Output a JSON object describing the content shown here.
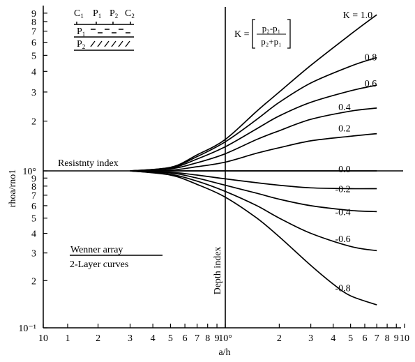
{
  "chart_data": {
    "type": "line",
    "xlabel": "a/h",
    "ylabel": "rhoa/rno1",
    "x_scale": "log",
    "y_scale": "log",
    "xlim": [
      0.1,
      10
    ],
    "ylim": [
      0.1,
      10
    ],
    "x_tick_labels": [
      "10",
      "1",
      "2",
      "3",
      "4",
      "5",
      "6",
      "7",
      "8",
      "9",
      "10°",
      "2",
      "3",
      "4",
      "5",
      "6",
      "7",
      "8",
      "9",
      "10"
    ],
    "y_tick_labels": [
      "10⁻¹",
      "2",
      "3",
      "4",
      "5",
      "6",
      "7",
      "8",
      "9",
      "10°",
      "2",
      "3",
      "4",
      "5",
      "6",
      "7",
      "8",
      "9"
    ],
    "formula": {
      "lhs": "K =",
      "numerator": "p₂-p₁",
      "denominator": "p₂+p₁"
    },
    "annotations": {
      "resistivity_index": "Resistnty index",
      "depth_index": "Depth index",
      "legend_line1": "Wenner  array",
      "legend_line2": "2-Layer curves",
      "inset_top": [
        "C",
        "P",
        "P",
        "C"
      ],
      "inset_top_sub": [
        "1",
        "1",
        "2",
        "2"
      ],
      "inset_layer1": "P",
      "inset_layer1_sub": "1",
      "inset_layer2": "P",
      "inset_layer2_sub": "2"
    },
    "series": [
      {
        "name": "K = 1.0",
        "x": [
          0.3,
          0.5,
          0.7,
          1,
          1.5,
          2,
          3,
          5,
          7
        ],
        "y": [
          1,
          1.05,
          1.25,
          1.55,
          2.3,
          3.0,
          4.35,
          6.7,
          8.8
        ]
      },
      {
        "name": "0.8",
        "x": [
          0.3,
          0.5,
          0.7,
          1,
          1.5,
          2,
          3,
          5,
          7
        ],
        "y": [
          1,
          1.05,
          1.22,
          1.5,
          2.05,
          2.6,
          3.4,
          4.3,
          4.85
        ]
      },
      {
        "name": "0.6",
        "x": [
          0.3,
          0.5,
          0.7,
          1,
          1.5,
          2,
          3,
          5,
          7
        ],
        "y": [
          1,
          1.04,
          1.18,
          1.4,
          1.8,
          2.15,
          2.6,
          3.05,
          3.3
        ]
      },
      {
        "name": "0.4",
        "x": [
          0.3,
          0.5,
          0.7,
          1,
          1.5,
          2,
          3,
          5,
          7
        ],
        "y": [
          1,
          1.03,
          1.12,
          1.27,
          1.55,
          1.75,
          2.05,
          2.3,
          2.4
        ]
      },
      {
        "name": "0.2",
        "x": [
          0.3,
          0.5,
          0.7,
          1,
          1.5,
          2,
          3,
          5,
          7
        ],
        "y": [
          1,
          1.01,
          1.06,
          1.13,
          1.28,
          1.38,
          1.52,
          1.62,
          1.68
        ]
      },
      {
        "name": "0.0",
        "x": [
          0.3,
          7
        ],
        "y": [
          1,
          1
        ]
      },
      {
        "name": "-0.2",
        "x": [
          0.3,
          0.5,
          0.7,
          1,
          1.5,
          2,
          3,
          5,
          7
        ],
        "y": [
          1,
          0.98,
          0.94,
          0.89,
          0.84,
          0.81,
          0.78,
          0.77,
          0.77
        ]
      },
      {
        "name": "-0.4",
        "x": [
          0.3,
          0.5,
          0.7,
          1,
          1.5,
          2,
          3,
          5,
          7
        ],
        "y": [
          1,
          0.97,
          0.9,
          0.81,
          0.72,
          0.66,
          0.6,
          0.56,
          0.55
        ]
      },
      {
        "name": "-0.6",
        "x": [
          0.3,
          0.5,
          0.7,
          1,
          1.5,
          2,
          3,
          5,
          7
        ],
        "y": [
          1,
          0.95,
          0.86,
          0.74,
          0.6,
          0.5,
          0.4,
          0.33,
          0.31
        ]
      },
      {
        "name": "-0.8",
        "x": [
          0.3,
          0.5,
          0.7,
          1,
          1.5,
          2,
          3,
          4,
          5,
          7
        ],
        "y": [
          1,
          0.94,
          0.82,
          0.68,
          0.5,
          0.38,
          0.25,
          0.19,
          0.16,
          0.14
        ]
      }
    ],
    "series_labels": [
      "K = 1.0",
      "0.8",
      "0.6",
      "0.4",
      "0.2",
      "0.0",
      "-0.2",
      "-0.4",
      "-0.6",
      "-0.8"
    ],
    "series_label_x": [
      7,
      7,
      7,
      5,
      5,
      5,
      5,
      5,
      5,
      5
    ],
    "series_label_y": [
      8.8,
      4.9,
      3.4,
      2.45,
      1.82,
      1.03,
      0.77,
      0.55,
      0.37,
      0.18
    ],
    "grid": false
  }
}
